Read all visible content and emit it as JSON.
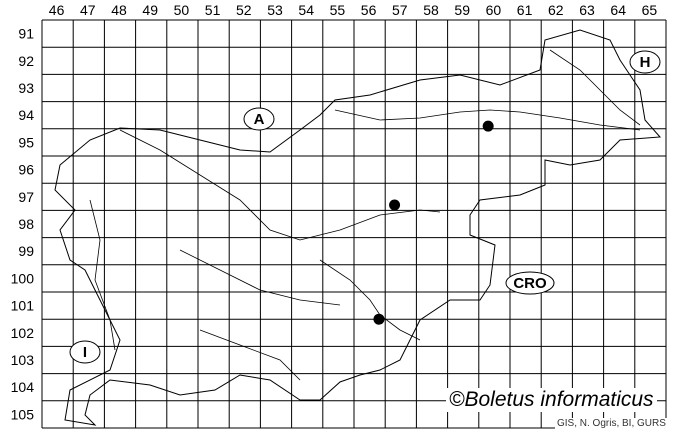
{
  "grid": {
    "columns": [
      "46",
      "47",
      "48",
      "49",
      "50",
      "51",
      "52",
      "53",
      "54",
      "55",
      "56",
      "57",
      "58",
      "59",
      "60",
      "61",
      "62",
      "63",
      "64",
      "65"
    ],
    "rows": [
      "91",
      "92",
      "93",
      "94",
      "95",
      "96",
      "97",
      "98",
      "99",
      "100",
      "101",
      "102",
      "103",
      "104",
      "105"
    ]
  },
  "country_labels": [
    {
      "id": "austria",
      "text": "A"
    },
    {
      "id": "hungary",
      "text": "H"
    },
    {
      "id": "croatia",
      "text": "CRO"
    },
    {
      "id": "italy",
      "text": "I"
    }
  ],
  "records": [
    {
      "column": "59.8",
      "row": "94.4"
    },
    {
      "column": "56.8",
      "row": "97.3"
    },
    {
      "column": "56.3",
      "row": "101.5"
    }
  ],
  "credit": "©Boletus informaticus",
  "source": "GIS, N. Ogris, BI, GURS",
  "colors": {
    "lines": "#000000",
    "background": "#ffffff",
    "dots": "#000000"
  }
}
